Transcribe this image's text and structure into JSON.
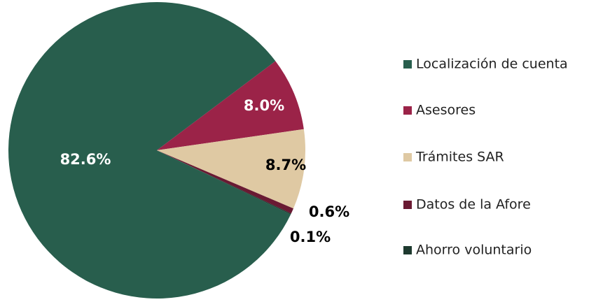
{
  "chart_data": {
    "type": "pie",
    "categories": [
      "Localización de cuenta",
      "Asesores",
      "Trámites SAR",
      "Datos de la Afore",
      "Ahorro voluntario"
    ],
    "values": [
      82.6,
      8.0,
      8.7,
      0.6,
      0.1
    ],
    "value_labels": [
      "82.6%",
      "8.0%",
      "8.7%",
      "0.6%",
      "0.1%"
    ],
    "colors": [
      "#285e4d",
      "#9b2348",
      "#dfc9a3",
      "#6a1a33",
      "#1e3a2f"
    ]
  }
}
